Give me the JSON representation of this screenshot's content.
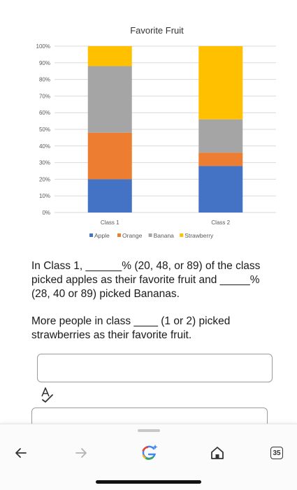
{
  "chart_data": {
    "type": "bar",
    "stacked": true,
    "title": "Favorite Fruit",
    "categories": [
      "Class 1",
      "Class 2"
    ],
    "series": [
      {
        "name": "Apple",
        "color": "#4472C4",
        "values": [
          20,
          28
        ]
      },
      {
        "name": "Orange",
        "color": "#ED7D31",
        "values": [
          28,
          8
        ]
      },
      {
        "name": "Banana",
        "color": "#A5A5A5",
        "values": [
          40,
          20
        ]
      },
      {
        "name": "Strawberry",
        "color": "#FFC000",
        "values": [
          12,
          44
        ]
      }
    ],
    "yticks": [
      "0%",
      "10%",
      "20%",
      "30%",
      "40%",
      "50%",
      "60%",
      "70%",
      "80%",
      "90%",
      "100%"
    ],
    "ylim": [
      0,
      100
    ],
    "grid": true,
    "legend": "bottom"
  },
  "questions": {
    "q1": "In Class 1, ______% (20, 48, or 89) of the class picked apples as their favorite fruit and _____% (28, 40 or 89) picked Bananas.",
    "q2": "More people in class ____ (1 or 2) picked strawberries as their favorite fruit."
  },
  "answer": {
    "value": ""
  },
  "browser_nav": {
    "tab_count": "35",
    "icons": [
      "back-arrow-icon",
      "forward-arrow-icon",
      "google-assistant-icon",
      "home-icon",
      "tabs-icon"
    ]
  }
}
